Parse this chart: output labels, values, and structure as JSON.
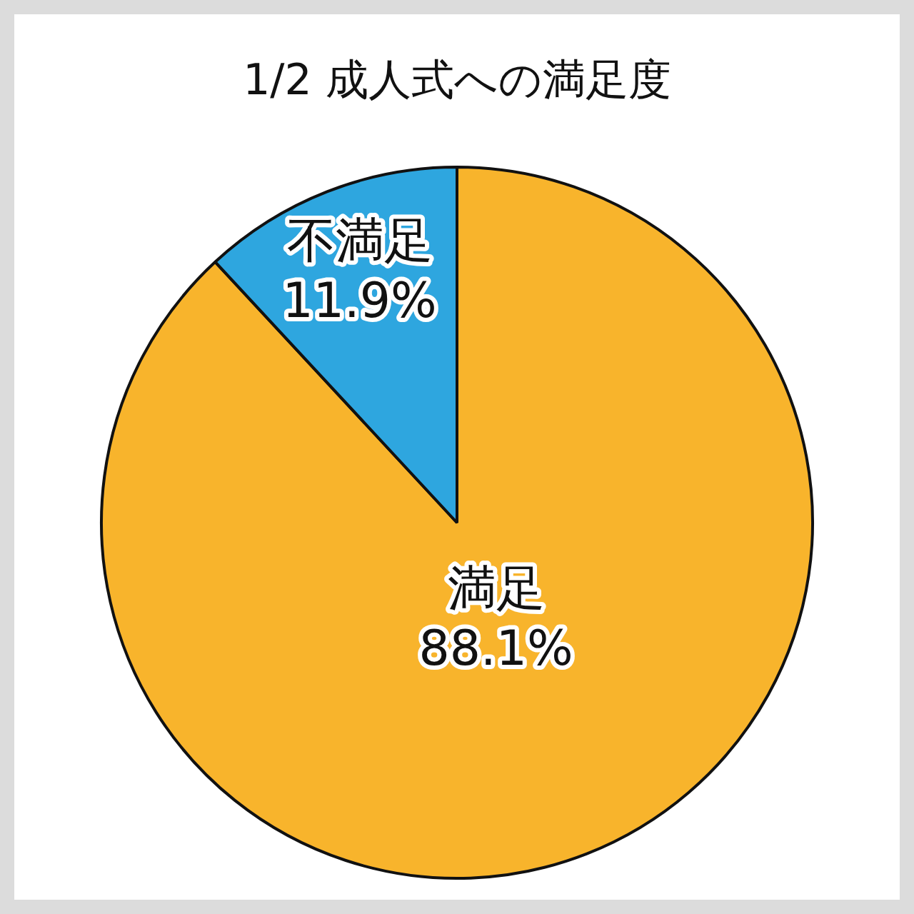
{
  "chart_data": {
    "type": "pie",
    "title": "1/2 成人式への満足度",
    "categories": [
      "満足",
      "不満足"
    ],
    "values": [
      88.1,
      11.9
    ],
    "colors": [
      "#f8b42c",
      "#2ea6df"
    ],
    "value_labels": [
      "88.1%",
      "11.9%"
    ],
    "legend": false
  }
}
